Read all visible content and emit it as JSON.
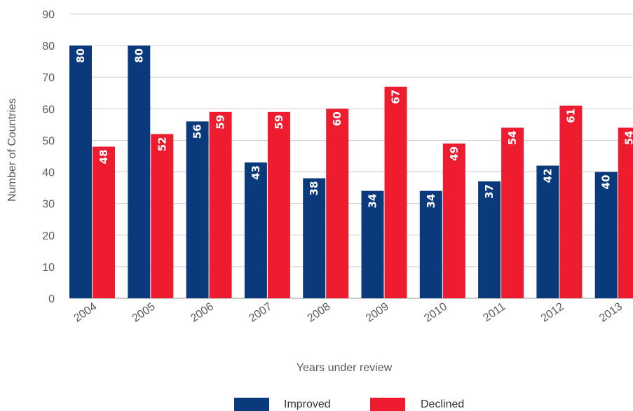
{
  "chart_data": {
    "type": "bar",
    "categories": [
      "2004",
      "2005",
      "2006",
      "2007",
      "2008",
      "2009",
      "2010",
      "2011",
      "2012",
      "2013"
    ],
    "series": [
      {
        "name": "Improved",
        "color": "#0b3a7c",
        "values": [
          80,
          80,
          56,
          43,
          38,
          34,
          34,
          37,
          42,
          40
        ]
      },
      {
        "name": "Declined",
        "color": "#ed1c2e",
        "values": [
          48,
          52,
          59,
          59,
          60,
          67,
          49,
          54,
          61,
          54
        ]
      }
    ],
    "xlabel": "Years under review",
    "ylabel": "Number of Countries",
    "ylim": [
      0,
      90
    ],
    "yticks": [
      0,
      10,
      20,
      30,
      40,
      50,
      60,
      70,
      80,
      90
    ],
    "grid": true,
    "legend_position": "bottom"
  }
}
